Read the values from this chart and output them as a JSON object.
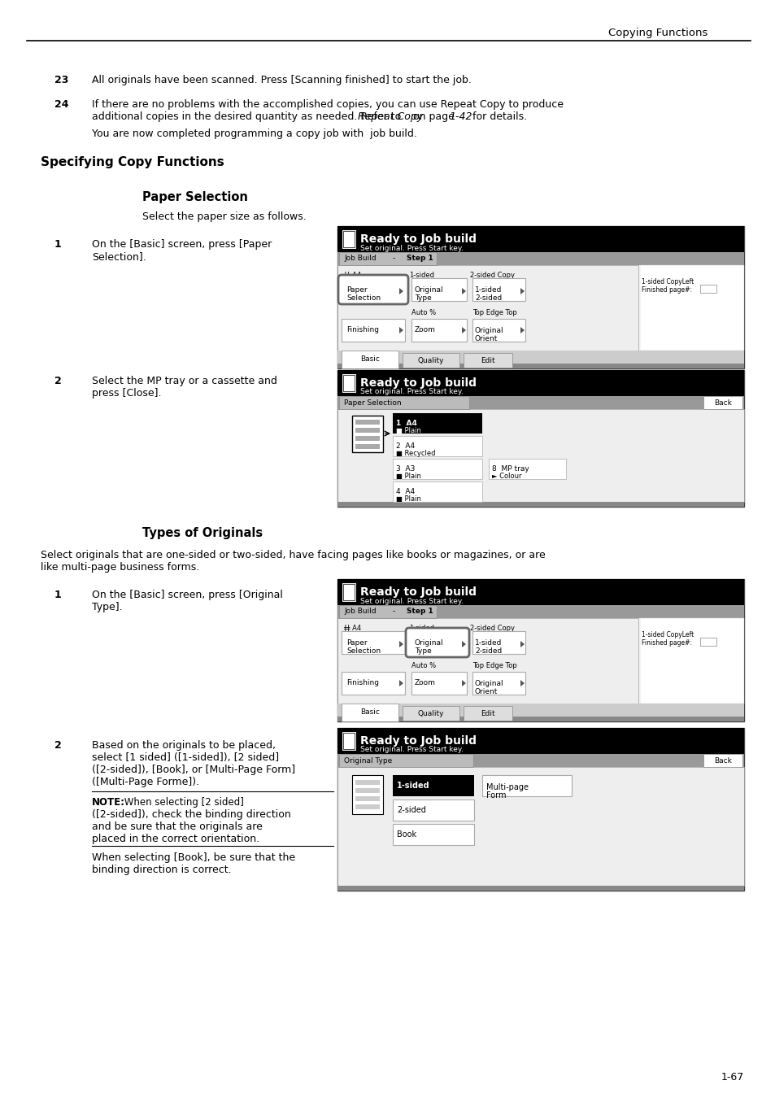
{
  "page_header": "Copying Functions",
  "item23_num": "23",
  "item23_text": "All originals have been scanned. Press [Scanning finished] to start the job.",
  "item24_num": "24",
  "item24_text1": "If there are no problems with the accomplished copies, you can use Repeat Copy to produce",
  "item24_text2a": "additional copies in the desired quantity as needed. Refer to ",
  "item24_italic": "Repeat Copy",
  "item24_text2b": " on page ",
  "item24_italic2": "1-42",
  "item24_text2c": " for details.",
  "item24_sub": "You are now completed programming a copy job with  job build.",
  "section_title": "Specifying Copy Functions",
  "sub1_title": "Paper Selection",
  "sub1_desc": "Select the paper size as follows.",
  "step1_num": "1",
  "step1_text1": "On the [Basic] screen, press [Paper",
  "step1_text2": "Selection].",
  "step2_num": "2",
  "step2_text1": "Select the MP tray or a cassette and",
  "step2_text2": "press [Close].",
  "sub2_title": "Types of Originals",
  "sub2_desc1": "Select originals that are one-sided or two-sided, have facing pages like books or magazines, or are",
  "sub2_desc2": "like multi-page business forms.",
  "step3_num": "1",
  "step3_text1": "On the [Basic] screen, press [Original",
  "step3_text2": "Type].",
  "step4_num": "2",
  "step4_text1": "Based on the originals to be placed,",
  "step4_text2": "select [1 sided] ([1-sided]), [2 sided]",
  "step4_text3": "([2-sided]), [Book], or [Multi-Page Form]",
  "step4_text4": "([Multi-Page Forme]).",
  "note_bold": "NOTE:",
  "note_text1": " When selecting [2 sided]",
  "note_text2": "([2-sided]), check the binding direction",
  "note_text3": "and be sure that the originals are",
  "note_text4": "placed in the correct orientation.",
  "note2_text1": "When selecting [Book], be sure that the",
  "note2_text2": "binding direction is correct.",
  "page_num": "1-67",
  "bg_color": "#ffffff"
}
